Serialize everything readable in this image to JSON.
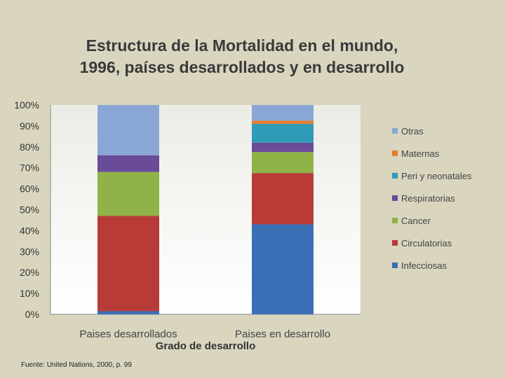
{
  "chart_data": {
    "type": "bar",
    "stacked": true,
    "title": "Estructura de la Mortalidad en el mundo, 1996, países desarrollados y en desarrollo",
    "xlabel": "Grado de desarrollo",
    "ylabel": "",
    "ylim": [
      0,
      100
    ],
    "y_ticks": [
      "0%",
      "10%",
      "20%",
      "30%",
      "40%",
      "50%",
      "60%",
      "70%",
      "80%",
      "90%",
      "100%"
    ],
    "categories": [
      "Paises desarrollados",
      "Paises en desarrollo"
    ],
    "series": [
      {
        "name": "Infecciosas",
        "color": "#3a6fb5",
        "values": [
          1.5,
          43
        ]
      },
      {
        "name": "Circulatorias",
        "color": "#b83b38",
        "values": [
          45.5,
          24.5
        ]
      },
      {
        "name": "Cancer",
        "color": "#8fb346",
        "values": [
          21,
          10
        ]
      },
      {
        "name": "Respiratorias",
        "color": "#6a4b98",
        "values": [
          8,
          4.5
        ]
      },
      {
        "name": "Peri y neonatales",
        "color": "#2f9bb6",
        "values": [
          0,
          9
        ]
      },
      {
        "name": "Maternas",
        "color": "#e77c2a",
        "values": [
          0,
          1.5
        ]
      },
      {
        "name": "Otras",
        "color": "#8aa6d4",
        "values": [
          24,
          7.5
        ]
      }
    ],
    "legend_position": "right",
    "grid": false
  },
  "source": "Fuente: United Nations, 2000,  p. 99"
}
